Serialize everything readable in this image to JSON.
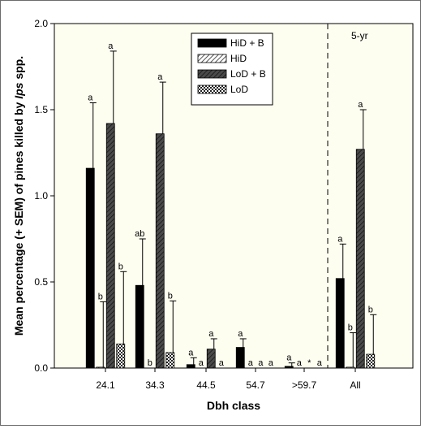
{
  "chart_data": {
    "type": "bar",
    "xlabel": "Dbh class",
    "ylabel_prefix": "Mean percentage (+ SEM) of pines killed by ",
    "ylabel_genus": "Ips",
    "ylabel_suffix": " spp.",
    "panel_note": "5-yr",
    "ylim": [
      0,
      2.0
    ],
    "yticks": [
      "0.0",
      "0.5",
      "1.0",
      "1.5",
      "2.0"
    ],
    "categories": [
      "24.1",
      "34.3",
      "44.5",
      "54.7",
      ">59.7",
      "All"
    ],
    "legend_position": "top-right",
    "series": [
      {
        "name": "HiD + B",
        "pattern": "solid",
        "values": [
          1.16,
          0.48,
          0.02,
          0.12,
          0.01,
          0.52
        ],
        "sem": [
          0.38,
          0.27,
          0.04,
          0.05,
          0.02,
          0.2
        ],
        "letters": [
          "a",
          "ab",
          "a",
          "a",
          "a",
          "a"
        ]
      },
      {
        "name": "HiD",
        "pattern": "light-hatch",
        "values": [
          0.005,
          0.0,
          0.0,
          0.0,
          0.0,
          0.005
        ],
        "sem": [
          0.38,
          0.0,
          0.0,
          0.0,
          0.0,
          0.2
        ],
        "letters": [
          "b",
          "b",
          "a",
          "a",
          "a",
          "b"
        ]
      },
      {
        "name": "LoD + B",
        "pattern": "dark-hatch",
        "values": [
          1.42,
          1.36,
          0.11,
          0.0,
          0.0,
          1.27
        ],
        "sem": [
          0.42,
          0.3,
          0.06,
          0.0,
          0.0,
          0.23
        ],
        "letters": [
          "a",
          "a",
          "a",
          "a",
          "*",
          "a"
        ]
      },
      {
        "name": "LoD",
        "pattern": "checker",
        "values": [
          0.14,
          0.09,
          0.0,
          0.0,
          0.0,
          0.08
        ],
        "sem": [
          0.42,
          0.3,
          0.0,
          0.0,
          0.0,
          0.23
        ],
        "letters": [
          "b",
          "b",
          "a",
          "a",
          "a",
          "b"
        ]
      }
    ]
  }
}
